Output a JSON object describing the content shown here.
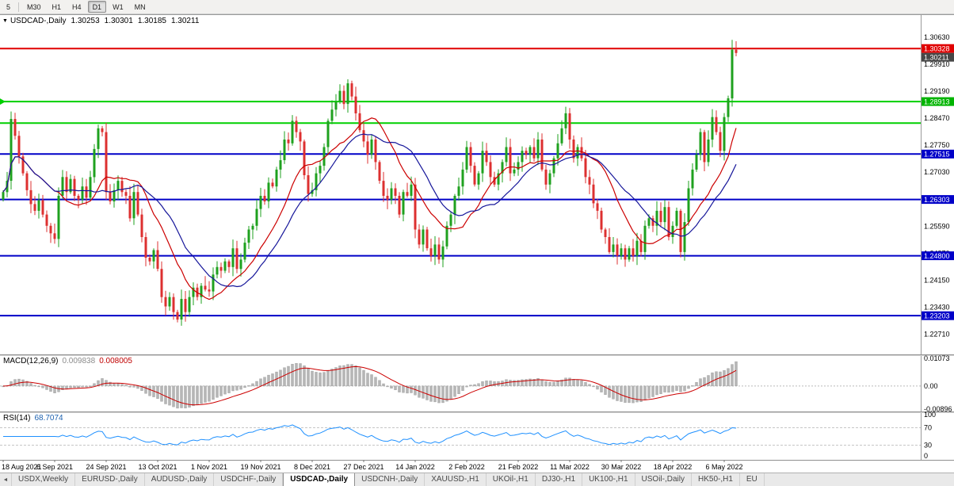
{
  "toolbar": {
    "timeframes": [
      {
        "label": "5",
        "active": false
      },
      {
        "label": "M30",
        "active": false
      },
      {
        "label": "H1",
        "active": false
      },
      {
        "label": "H4",
        "active": false
      },
      {
        "label": "D1",
        "active": true
      },
      {
        "label": "W1",
        "active": false
      },
      {
        "label": "MN",
        "active": false
      }
    ]
  },
  "chart_data": {
    "type": "candlestick",
    "title": "USDCAD-,Daily",
    "ohlc": {
      "open": "1.30253",
      "high": "1.30301",
      "low": "1.30185",
      "close": "1.30211"
    },
    "collapse_icon": "▼",
    "ylim": [
      1.2217,
      1.312
    ],
    "dx": 5.0,
    "colors": {
      "up": "#1fa11f",
      "down": "#dd3030",
      "axis_text": "#000000"
    },
    "price_axis_labels": [
      "1.30630",
      "1.29910",
      "1.29190",
      "1.28470",
      "1.27750",
      "1.27030",
      "1.26310",
      "1.25590",
      "1.24870",
      "1.24150",
      "1.23430",
      "1.22710"
    ],
    "current_price_tag": {
      "label": "1.30211",
      "price": 1.30211,
      "color": "#474747"
    },
    "h_lines": [
      {
        "price": 1.30328,
        "color": "#e00000",
        "width": 2,
        "tag": "1.30328",
        "tag_color": "#e00000"
      },
      {
        "price": 1.28913,
        "color": "#00cf00",
        "width": 2,
        "tag": "1.28913",
        "tag_color": "#00b400",
        "left_marker": true
      },
      {
        "price": 1.2834,
        "color": "#00cf00",
        "width": 2
      },
      {
        "price": 1.27515,
        "color": "#0000c8",
        "width": 2,
        "tag": "1.27515",
        "tag_color": "#0000c8"
      },
      {
        "price": 1.26303,
        "color": "#0000c8",
        "width": 2,
        "tag": "1.26303",
        "tag_color": "#0000c8"
      },
      {
        "price": 1.248,
        "color": "#0000c8",
        "width": 2,
        "tag": "1.24800",
        "tag_color": "#0000c8"
      },
      {
        "price": 1.23203,
        "color": "#0000c8",
        "width": 2,
        "tag": "1.23203",
        "tag_color": "#0000c8"
      }
    ],
    "moving_averages": [
      {
        "period": 13,
        "color": "#cc0000"
      },
      {
        "period": 21,
        "color": "#16169a"
      }
    ],
    "x_label_step": 13,
    "x_labels": [
      "18 Aug 2021",
      "6 Sep 2021",
      "24 Sep 2021",
      "13 Oct 2021",
      "1 Nov 2021",
      "19 Nov 2021",
      "8 Dec 2021",
      "27 Dec 2021",
      "14 Jan 2022",
      "2 Feb 2022",
      "21 Feb 2022",
      "11 Mar 2022",
      "30 Mar 2022",
      "18 Apr 2022",
      "6 May 2022"
    ],
    "closes": [
      1.265,
      1.268,
      1.2845,
      1.28,
      1.2745,
      1.27,
      1.2655,
      1.2618,
      1.26,
      1.2628,
      1.259,
      1.256,
      1.254,
      1.2525,
      1.264,
      1.269,
      1.265,
      1.2685,
      1.264,
      1.263,
      1.2665,
      1.2635,
      1.269,
      1.2765,
      1.282,
      1.281,
      1.265,
      1.2625,
      1.2655,
      1.268,
      1.265,
      1.264,
      1.258,
      1.265,
      1.259,
      1.253,
      1.2475,
      1.2465,
      1.2495,
      1.2445,
      1.237,
      1.2345,
      1.237,
      1.233,
      1.231,
      1.2365,
      1.233,
      1.237,
      1.2395,
      1.237,
      1.24,
      1.239,
      1.2385,
      1.243,
      1.245,
      1.244,
      1.2465,
      1.245,
      1.25,
      1.2445,
      1.247,
      1.2515,
      1.255,
      1.256,
      1.2605,
      1.264,
      1.2625,
      1.2675,
      1.2665,
      1.271,
      1.2735,
      1.279,
      1.278,
      1.284,
      1.281,
      1.2785,
      1.2695,
      1.2645,
      1.2655,
      1.27,
      1.272,
      1.277,
      1.284,
      1.287,
      1.289,
      1.292,
      1.2885,
      1.294,
      1.2905,
      1.286,
      1.2815,
      1.2785,
      1.275,
      1.279,
      1.273,
      1.268,
      1.264,
      1.263,
      1.266,
      1.264,
      1.259,
      1.265,
      1.264,
      1.267,
      1.255,
      1.251,
      1.255,
      1.25,
      1.248,
      1.251,
      1.247,
      1.2505,
      1.256,
      1.259,
      1.264,
      1.2665,
      1.271,
      1.277,
      1.272,
      1.267,
      1.27,
      1.276,
      1.273,
      1.269,
      1.267,
      1.27,
      1.273,
      1.277,
      1.27,
      1.271,
      1.273,
      1.276,
      1.275,
      1.277,
      1.274,
      1.279,
      1.271,
      1.267,
      1.27,
      1.274,
      1.278,
      1.282,
      1.286,
      1.279,
      1.274,
      1.277,
      1.274,
      1.269,
      1.267,
      1.262,
      1.26,
      1.255,
      1.253,
      1.249,
      1.251,
      1.248,
      1.25,
      1.247,
      1.25,
      1.248,
      1.252,
      1.249,
      1.256,
      1.258,
      1.256,
      1.26,
      1.257,
      1.261,
      1.253,
      1.256,
      1.26,
      1.249,
      1.257,
      1.266,
      1.271,
      1.275,
      1.281,
      1.273,
      1.279,
      1.285,
      1.281,
      1.276,
      1.285,
      1.29,
      1.303,
      1.30211
    ],
    "macd": {
      "label": "MACD(12,26,9)",
      "value_main": "0.009838",
      "value_signal": "0.008005",
      "params": [
        12,
        26,
        9
      ],
      "axis": [
        "0.01073",
        "0.00",
        "-0.00896"
      ],
      "vmax": 0.01073,
      "vmin": -0.00896,
      "histogram_color": "#b6b6b6",
      "signal_color": "#cc0000"
    },
    "rsi": {
      "label": "RSI(14)",
      "value": "68.7074",
      "period": 14,
      "axis": [
        "100",
        "70",
        "30",
        "0"
      ],
      "levels": [
        70,
        30
      ],
      "line_color": "#1e90ff"
    }
  },
  "tabs": {
    "scroll_left_icon": "◄",
    "items": [
      {
        "label": "USDX,Weekly",
        "active": false
      },
      {
        "label": "EURUSD-,Daily",
        "active": false
      },
      {
        "label": "AUDUSD-,Daily",
        "active": false
      },
      {
        "label": "USDCHF-,Daily",
        "active": false
      },
      {
        "label": "USDCAD-,Daily",
        "active": true
      },
      {
        "label": "USDCNH-,Daily",
        "active": false
      },
      {
        "label": "XAUUSD-,H1",
        "active": false
      },
      {
        "label": "UKOil-,H1",
        "active": false
      },
      {
        "label": "DJ30-,H1",
        "active": false
      },
      {
        "label": "UK100-,H1",
        "active": false
      },
      {
        "label": "USOil-,Daily",
        "active": false
      },
      {
        "label": "HK50-,H1",
        "active": false
      },
      {
        "label": "EU",
        "active": false
      }
    ]
  }
}
